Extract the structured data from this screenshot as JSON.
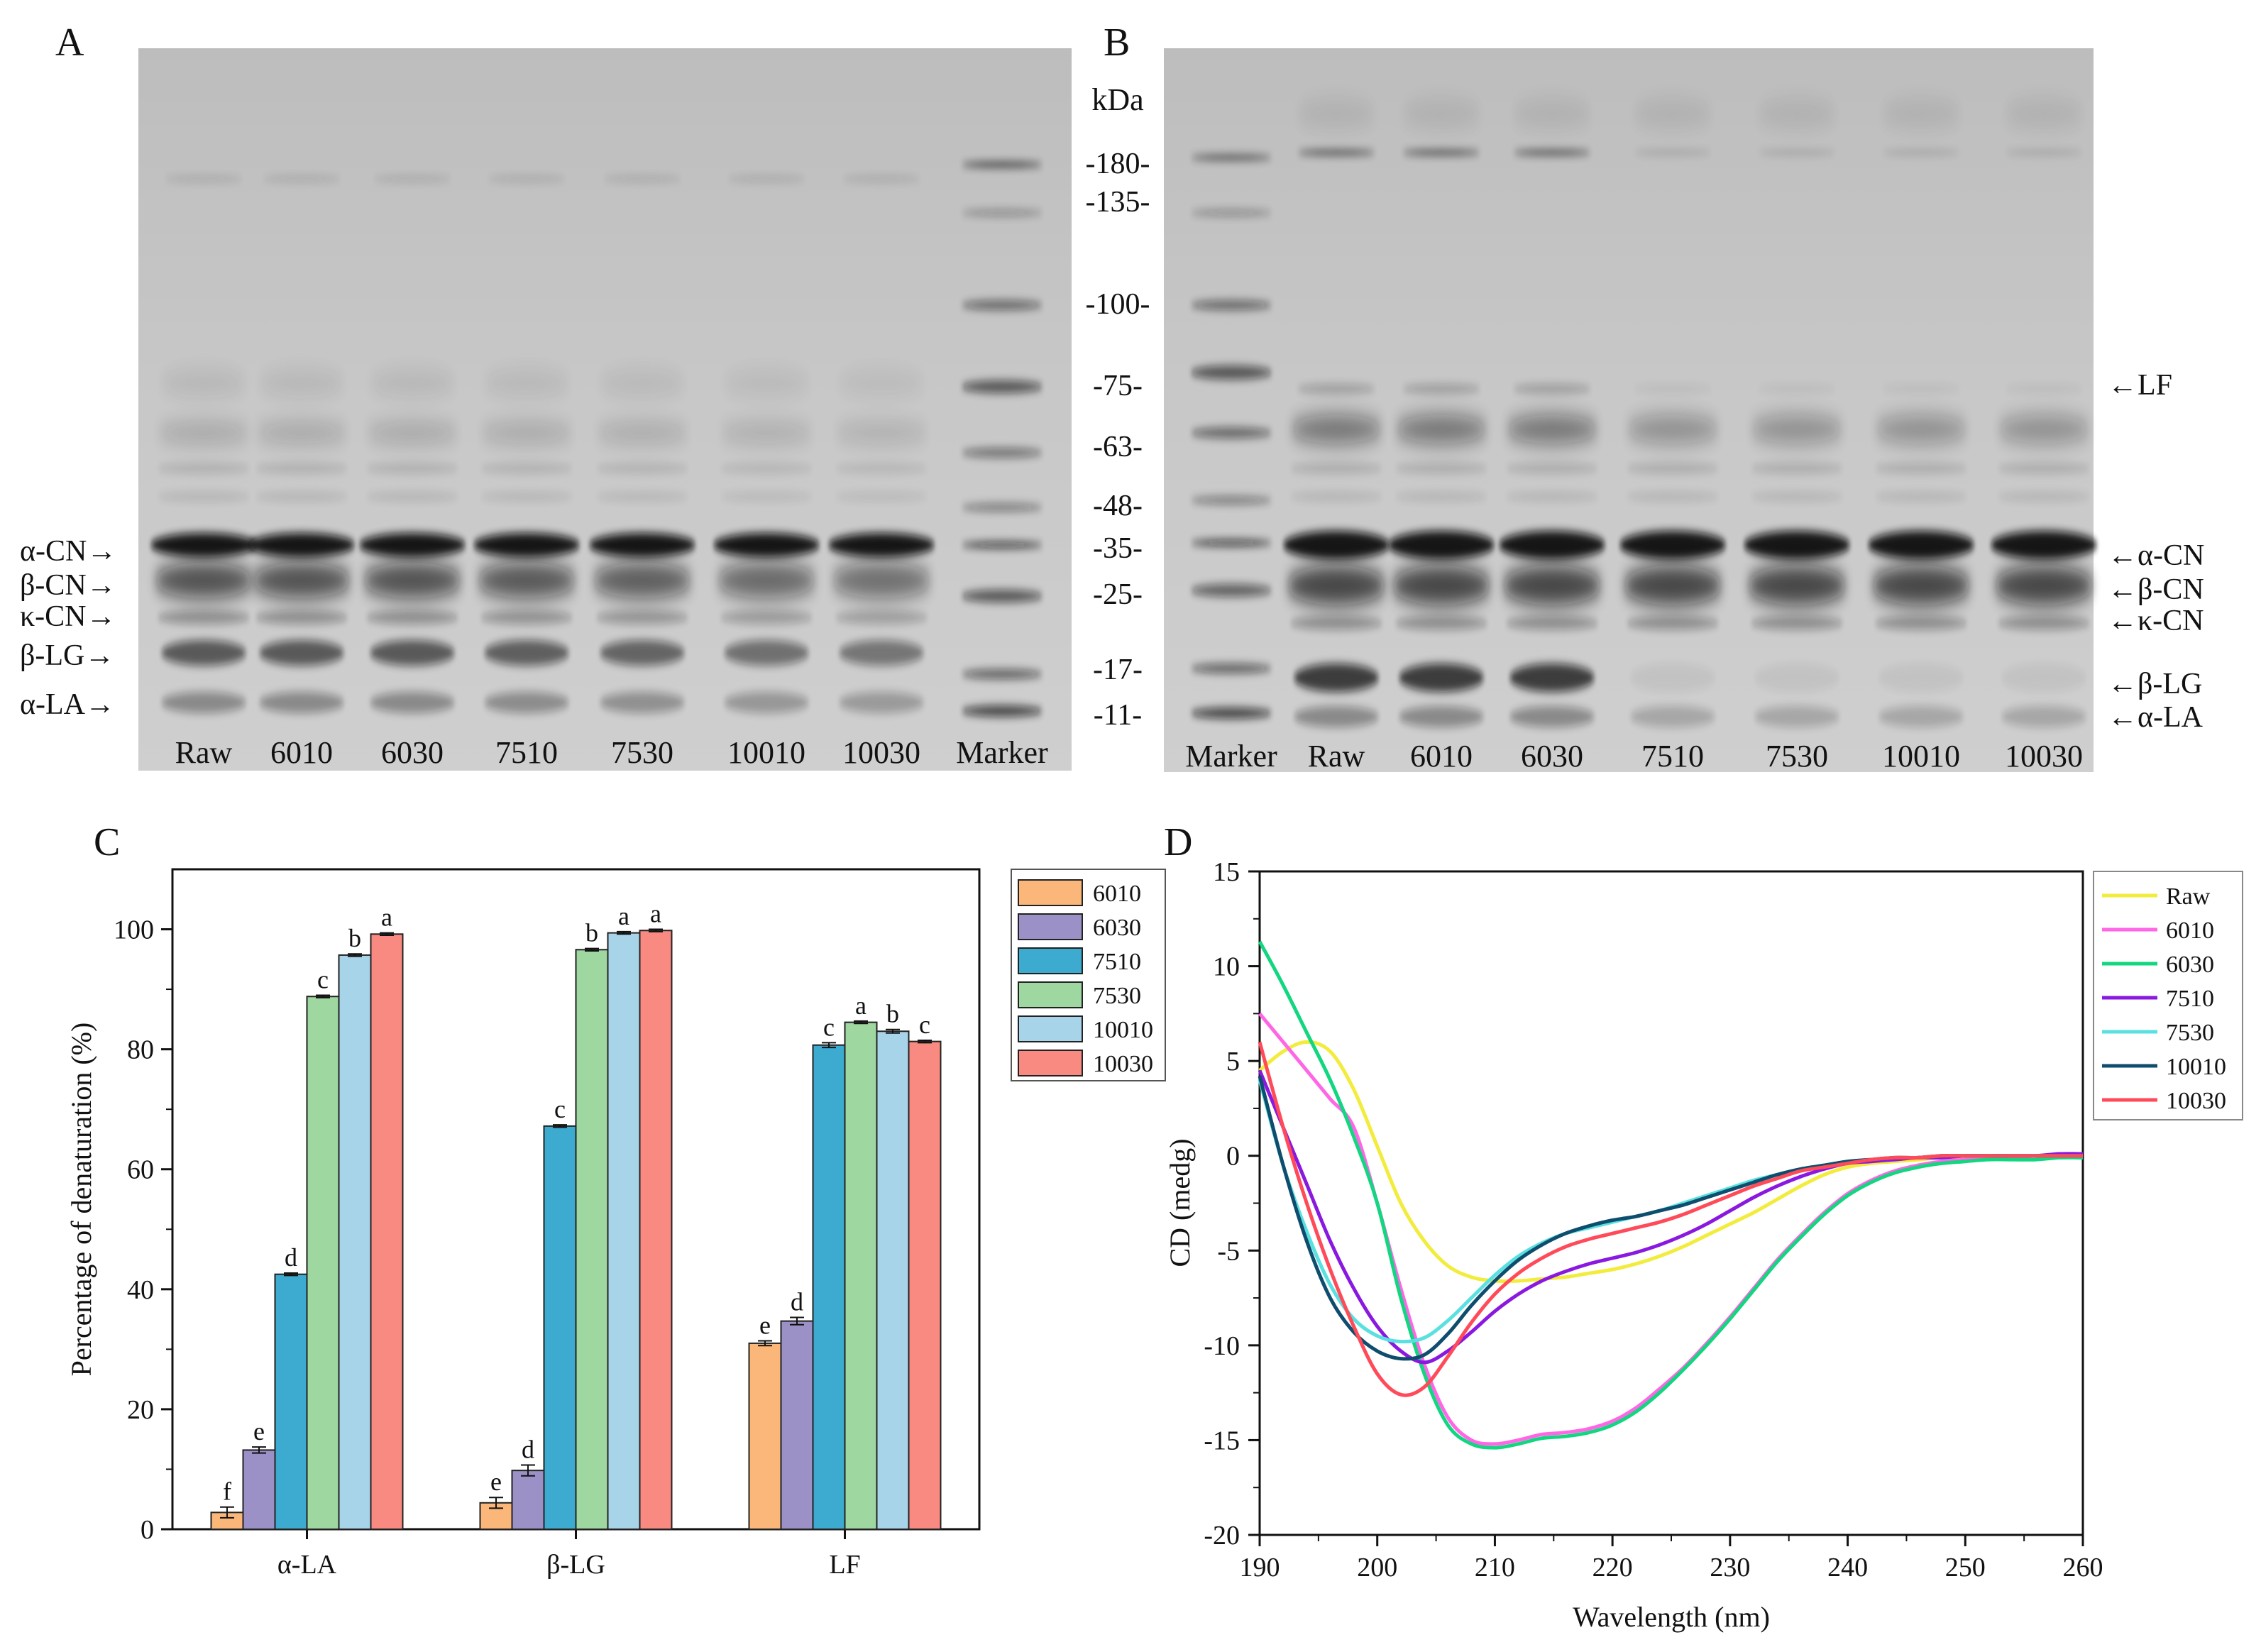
{
  "panel_letters": {
    "a": "A",
    "b": "B",
    "c": "C",
    "d": "D"
  },
  "gel_a": {
    "lanes": [
      "Raw",
      "6010",
      "6030",
      "7510",
      "7530",
      "10010",
      "10030",
      "Marker"
    ],
    "band_labels": [
      "α-CN→",
      "β-CN→",
      "κ-CN→",
      "β-LG→",
      "α-LA→"
    ]
  },
  "gel_b": {
    "lanes": [
      "Marker",
      "Raw",
      "6010",
      "6030",
      "7510",
      "7530",
      "10010",
      "10030"
    ],
    "band_labels": [
      "←LF",
      "←α-CN",
      "←β-CN",
      "←κ-CN",
      "←β-LG",
      "←α-LA"
    ]
  },
  "marker_unit": "kDa",
  "marker_labels": [
    "-180-",
    "-135-",
    "-100-",
    "-75-",
    "-63-",
    "-48-",
    "-35-",
    "-25-",
    "-17-",
    "-11-"
  ],
  "colors": {
    "6010": "#fbb679",
    "6030": "#9b91c7",
    "7510": "#3daacf",
    "7530": "#9fd7a0",
    "10010": "#a8d4ea",
    "10030": "#f98a82",
    "cd_Raw": "#f2ec3c",
    "cd_6010": "#ff66e6",
    "cd_6030": "#12d680",
    "cd_7510": "#8a19e0",
    "cd_7530": "#5ae0e0",
    "cd_10010": "#0e4d6e",
    "cd_10030": "#ff4a5a"
  },
  "chart_data": [
    {
      "type": "bar",
      "title": "",
      "xlabel": "",
      "ylabel": "Percentage of denaturation (%)",
      "ylim": [
        0,
        110
      ],
      "yticks": [
        "0",
        "20",
        "40",
        "60",
        "80",
        "100"
      ],
      "categories": [
        "α-LA",
        "β-LG",
        "LF"
      ],
      "series": [
        {
          "name": "6010",
          "values": [
            2.8,
            4.4,
            31.0
          ],
          "errors": [
            0.9,
            0.9,
            0.4
          ],
          "letters": [
            "f",
            "e",
            "e"
          ]
        },
        {
          "name": "6030",
          "values": [
            13.2,
            9.8,
            34.7
          ],
          "errors": [
            0.5,
            0.9,
            0.6
          ],
          "letters": [
            "e",
            "d",
            "d"
          ]
        },
        {
          "name": "7510",
          "values": [
            42.5,
            67.2,
            80.7
          ],
          "errors": [
            0.2,
            0.2,
            0.4
          ],
          "letters": [
            "d",
            "c",
            "c"
          ]
        },
        {
          "name": "7530",
          "values": [
            88.8,
            96.6,
            84.5
          ],
          "errors": [
            0.2,
            0.2,
            0.2
          ],
          "letters": [
            "c",
            "b",
            "a"
          ]
        },
        {
          "name": "10010",
          "values": [
            95.7,
            99.4,
            83.0
          ],
          "errors": [
            0.2,
            0.2,
            0.3
          ],
          "letters": [
            "b",
            "a",
            "b"
          ]
        },
        {
          "name": "10030",
          "values": [
            99.2,
            99.8,
            81.3
          ],
          "errors": [
            0.2,
            0.2,
            0.2
          ],
          "letters": [
            "a",
            "a",
            "c"
          ]
        }
      ],
      "legend_position": "right"
    },
    {
      "type": "line",
      "title": "",
      "xlabel": "Wavelength (nm)",
      "ylabel": "CD (medg)",
      "xlim": [
        190,
        260
      ],
      "ylim": [
        -20,
        15
      ],
      "xticks": [
        "190",
        "200",
        "210",
        "220",
        "230",
        "240",
        "250",
        "260"
      ],
      "yticks": [
        "15",
        "10",
        "5",
        "0",
        "-5",
        "-10",
        "-15",
        "-20"
      ],
      "legend_position": "top-right",
      "series": [
        {
          "name": "Raw",
          "x": [
            190,
            192,
            194,
            196,
            198,
            200,
            202,
            204,
            206,
            208,
            210,
            212,
            214,
            216,
            218,
            220,
            222,
            224,
            226,
            228,
            230,
            232,
            234,
            236,
            238,
            240,
            242,
            244,
            246,
            248,
            250,
            252,
            254,
            256,
            258,
            260
          ],
          "y": [
            4.5,
            5.5,
            6.0,
            5.5,
            3.5,
            0.5,
            -2.5,
            -4.5,
            -5.8,
            -6.4,
            -6.6,
            -6.6,
            -6.5,
            -6.4,
            -6.2,
            -6.0,
            -5.7,
            -5.3,
            -4.8,
            -4.2,
            -3.6,
            -3.0,
            -2.3,
            -1.6,
            -1.0,
            -0.6,
            -0.4,
            -0.3,
            -0.2,
            -0.1,
            -0.1,
            0,
            0,
            0,
            0.1,
            0.1
          ]
        },
        {
          "name": "6010",
          "x": [
            190,
            192,
            194,
            196,
            198,
            200,
            202,
            204,
            206,
            208,
            210,
            212,
            214,
            216,
            218,
            220,
            222,
            224,
            226,
            228,
            230,
            232,
            234,
            236,
            238,
            240,
            242,
            244,
            246,
            248,
            250,
            252,
            254,
            256,
            258,
            260
          ],
          "y": [
            7.5,
            6.0,
            4.5,
            3.0,
            1.5,
            -2.5,
            -7.0,
            -11.0,
            -13.8,
            -15.0,
            -15.2,
            -15.0,
            -14.7,
            -14.6,
            -14.4,
            -14.0,
            -13.3,
            -12.3,
            -11.2,
            -9.9,
            -8.5,
            -7.0,
            -5.5,
            -4.2,
            -3.0,
            -2.0,
            -1.3,
            -0.8,
            -0.5,
            -0.3,
            -0.2,
            -0.1,
            -0.1,
            0,
            0,
            0
          ]
        },
        {
          "name": "6030",
          "x": [
            190,
            192,
            194,
            196,
            198,
            200,
            202,
            204,
            206,
            208,
            210,
            212,
            214,
            216,
            218,
            220,
            222,
            224,
            226,
            228,
            230,
            232,
            234,
            236,
            238,
            240,
            242,
            244,
            246,
            248,
            250,
            252,
            254,
            256,
            258,
            260
          ],
          "y": [
            11.3,
            9.0,
            6.5,
            4.0,
            1.0,
            -2.5,
            -7.5,
            -11.5,
            -14.2,
            -15.2,
            -15.4,
            -15.2,
            -14.9,
            -14.8,
            -14.6,
            -14.2,
            -13.5,
            -12.5,
            -11.3,
            -10.0,
            -8.6,
            -7.1,
            -5.6,
            -4.3,
            -3.1,
            -2.1,
            -1.4,
            -0.9,
            -0.6,
            -0.4,
            -0.3,
            -0.2,
            -0.2,
            -0.2,
            -0.1,
            -0.1
          ]
        },
        {
          "name": "7510",
          "x": [
            190,
            192,
            194,
            196,
            198,
            200,
            202,
            204,
            206,
            208,
            210,
            212,
            214,
            216,
            218,
            220,
            222,
            224,
            226,
            228,
            230,
            232,
            234,
            236,
            238,
            240,
            242,
            244,
            246,
            248,
            250,
            252,
            254,
            256,
            258,
            260
          ],
          "y": [
            4.5,
            1.5,
            -1.5,
            -4.5,
            -7.0,
            -9.0,
            -10.3,
            -10.9,
            -10.3,
            -9.3,
            -8.2,
            -7.3,
            -6.6,
            -6.1,
            -5.7,
            -5.4,
            -5.1,
            -4.7,
            -4.2,
            -3.6,
            -2.9,
            -2.2,
            -1.6,
            -1.1,
            -0.7,
            -0.4,
            -0.3,
            -0.2,
            -0.1,
            -0.1,
            0,
            0,
            0,
            0,
            0.1,
            0.1
          ]
        },
        {
          "name": "7530",
          "x": [
            190,
            192,
            194,
            196,
            198,
            200,
            202,
            204,
            206,
            208,
            210,
            212,
            214,
            216,
            218,
            220,
            222,
            224,
            226,
            228,
            230,
            232,
            234,
            236,
            238,
            240,
            242,
            244,
            246,
            248,
            250,
            252,
            254,
            256,
            258,
            260
          ],
          "y": [
            4.0,
            -0.5,
            -4.0,
            -6.8,
            -8.6,
            -9.5,
            -9.8,
            -9.6,
            -8.7,
            -7.5,
            -6.3,
            -5.3,
            -4.6,
            -4.1,
            -3.8,
            -3.5,
            -3.2,
            -2.9,
            -2.5,
            -2.1,
            -1.7,
            -1.3,
            -1.0,
            -0.7,
            -0.5,
            -0.3,
            -0.2,
            -0.1,
            -0.1,
            0,
            0,
            0,
            0,
            0,
            0,
            0
          ]
        },
        {
          "name": "10010",
          "x": [
            190,
            192,
            194,
            196,
            198,
            200,
            202,
            204,
            206,
            208,
            210,
            212,
            214,
            216,
            218,
            220,
            222,
            224,
            226,
            228,
            230,
            232,
            234,
            236,
            238,
            240,
            242,
            244,
            246,
            248,
            250,
            252,
            254,
            256,
            258,
            260
          ],
          "y": [
            4.2,
            -0.5,
            -4.5,
            -7.5,
            -9.3,
            -10.3,
            -10.7,
            -10.5,
            -9.4,
            -7.9,
            -6.6,
            -5.5,
            -4.7,
            -4.1,
            -3.7,
            -3.4,
            -3.2,
            -2.9,
            -2.6,
            -2.2,
            -1.8,
            -1.4,
            -1.0,
            -0.7,
            -0.5,
            -0.3,
            -0.2,
            -0.1,
            -0.1,
            0,
            0,
            0,
            0,
            0,
            0,
            0
          ]
        },
        {
          "name": "10030",
          "x": [
            190,
            192,
            194,
            196,
            198,
            200,
            202,
            204,
            206,
            208,
            210,
            212,
            214,
            216,
            218,
            220,
            222,
            224,
            226,
            228,
            230,
            232,
            234,
            236,
            238,
            240,
            242,
            244,
            246,
            248,
            250,
            252,
            254,
            256,
            258,
            260
          ],
          "y": [
            6.0,
            1.5,
            -2.5,
            -6.0,
            -9.0,
            -11.5,
            -12.6,
            -12.2,
            -10.6,
            -8.8,
            -7.3,
            -6.2,
            -5.4,
            -4.8,
            -4.4,
            -4.1,
            -3.8,
            -3.5,
            -3.1,
            -2.6,
            -2.1,
            -1.6,
            -1.2,
            -0.8,
            -0.6,
            -0.4,
            -0.2,
            -0.1,
            -0.1,
            0,
            0,
            0,
            0,
            0,
            0,
            0
          ]
        }
      ]
    }
  ]
}
